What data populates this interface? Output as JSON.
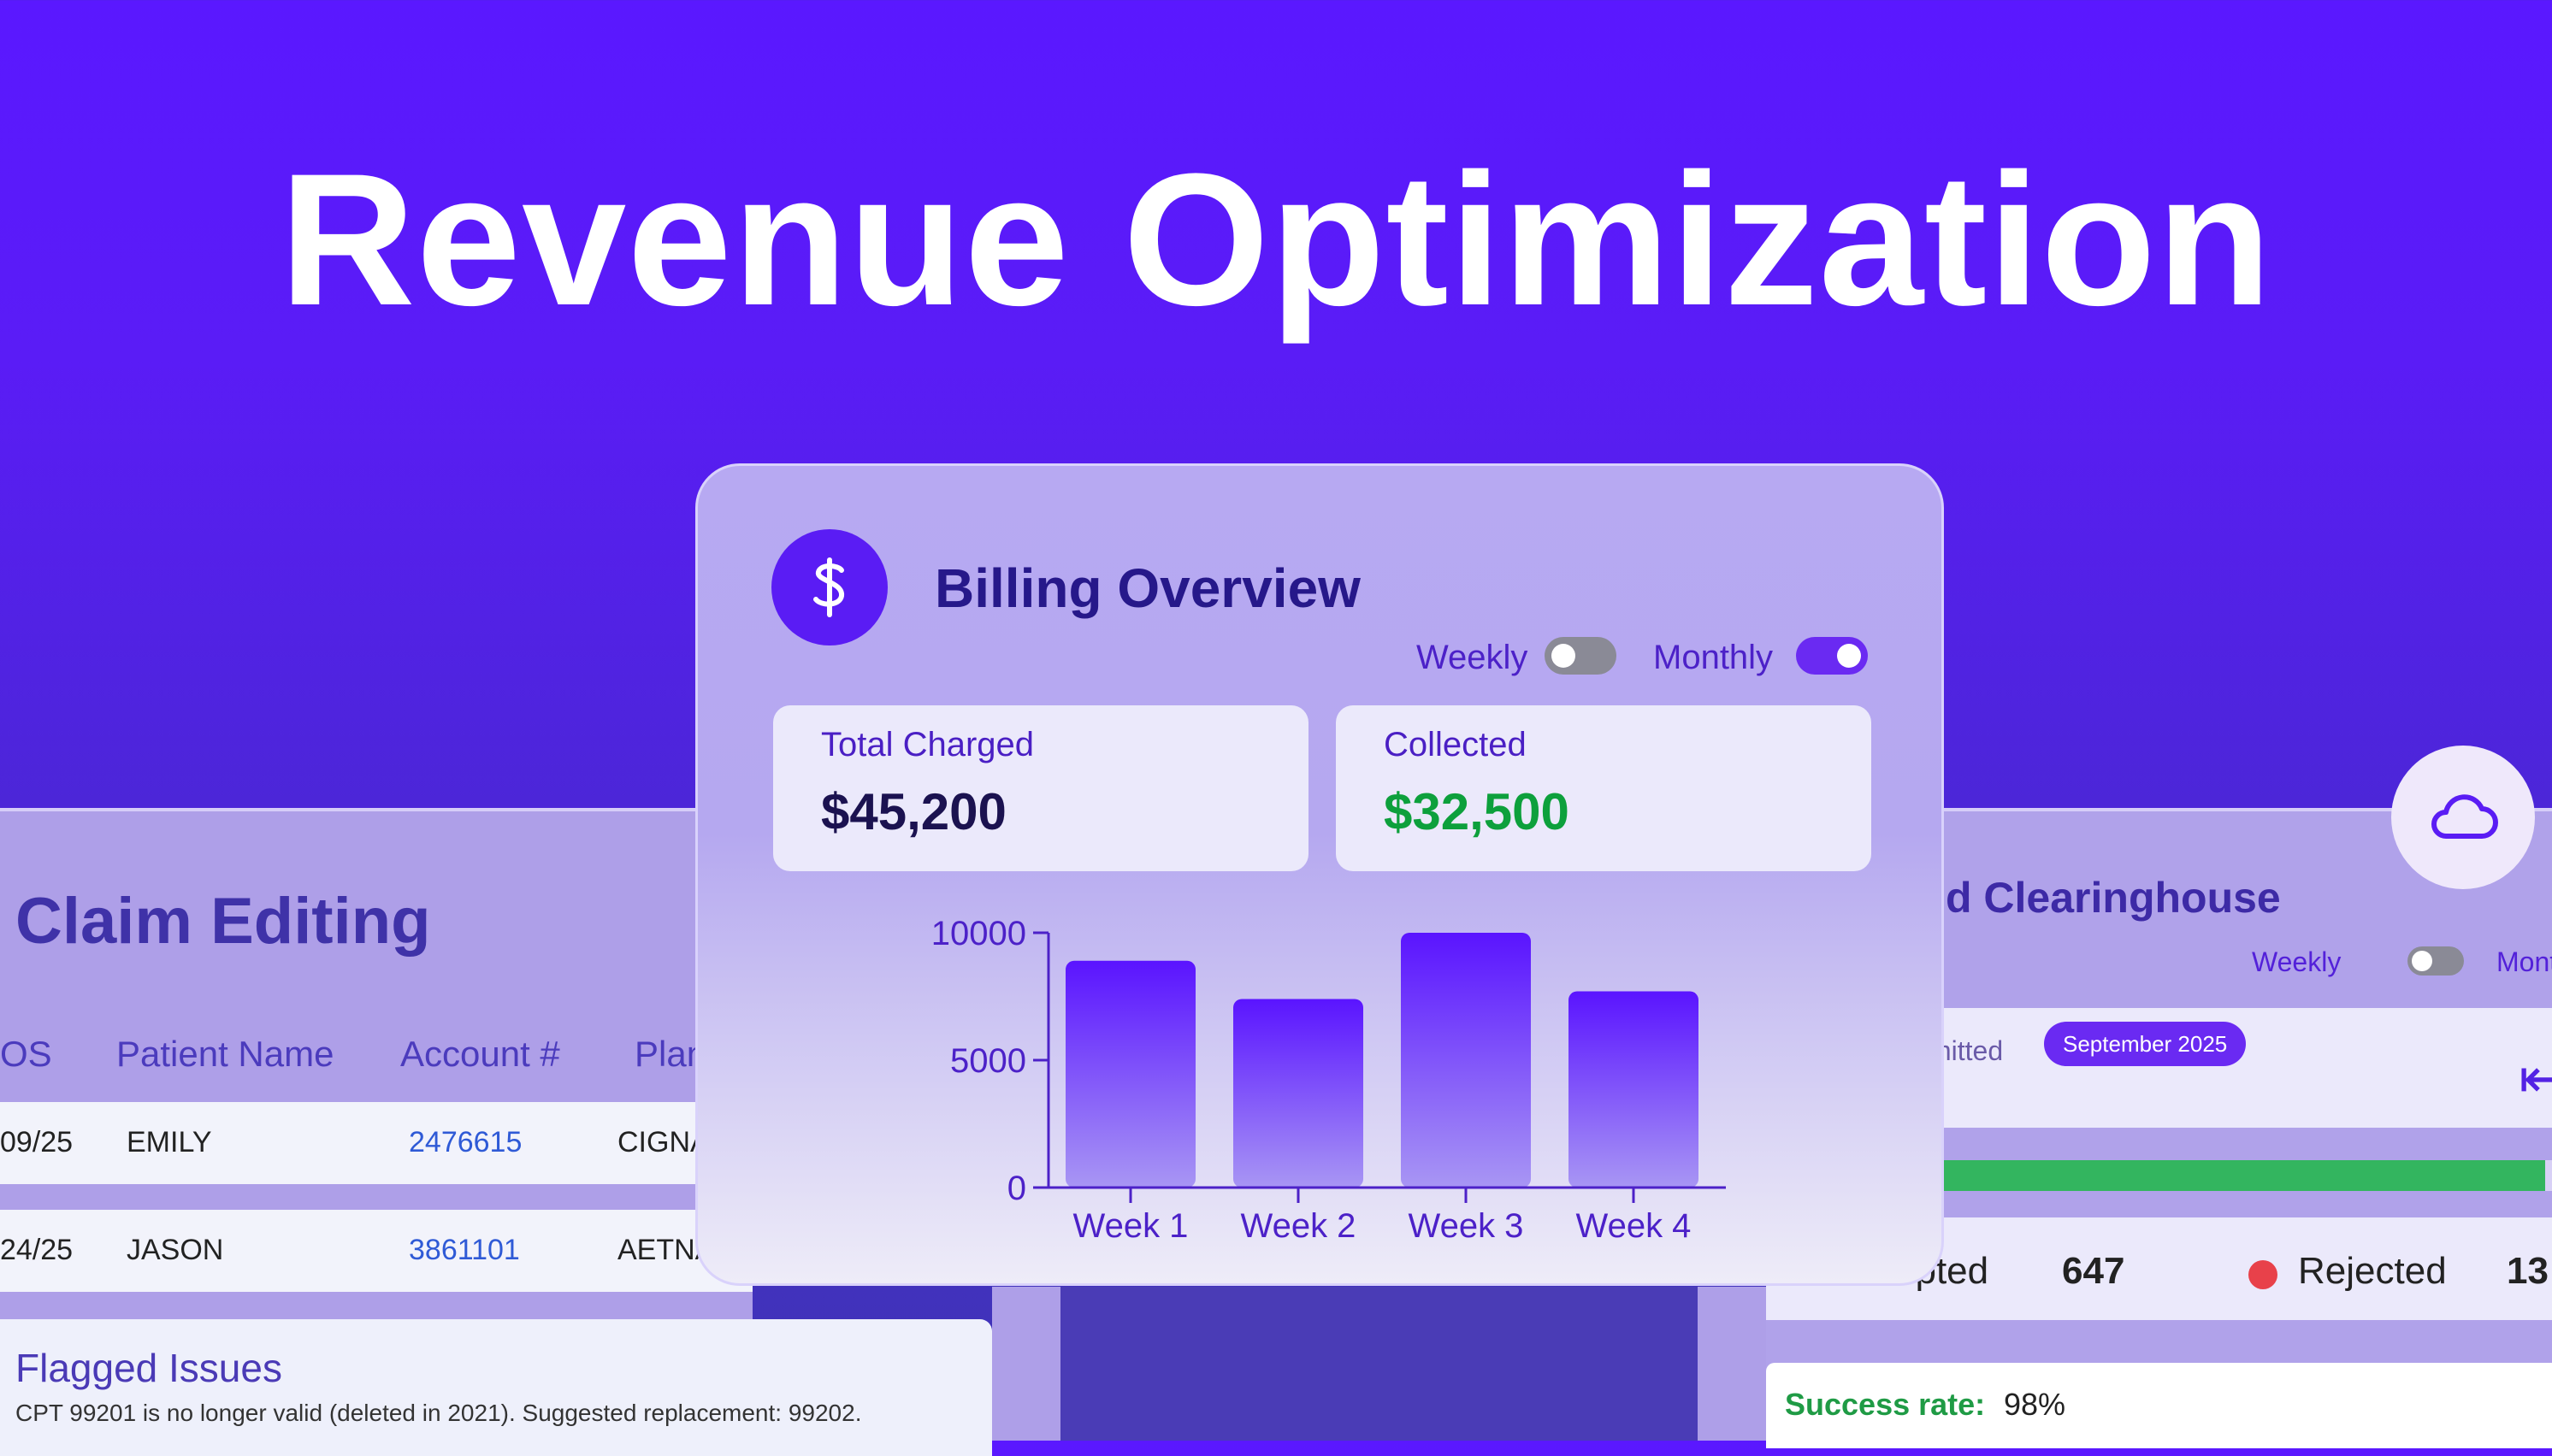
{
  "hero": {
    "title": "Revenue Optimization"
  },
  "claim_editing": {
    "title": "Claim Editing",
    "columns": [
      "OS",
      "Patient Name",
      "Account #",
      "Plan"
    ],
    "rows": [
      {
        "date": "09/25",
        "patient": "EMILY",
        "account": "2476615",
        "plan": "CIGNA"
      },
      {
        "date": "24/25",
        "patient": "JASON",
        "account": "3861101",
        "plan": "AETNA"
      }
    ],
    "flagged": {
      "title": "Flagged Issues",
      "text": "CPT 99201 is no longer valid (deleted in 2021). Suggested replacement: 99202."
    }
  },
  "billing_overview": {
    "title": "Billing Overview",
    "icon": "dollar-icon",
    "toggle_weekly": "Weekly",
    "toggle_monthly": "Monthly",
    "weekly_on": false,
    "monthly_on": true,
    "total_charged_label": "Total Charged",
    "total_charged_value": "$45,200",
    "collected_label": "Collected",
    "collected_value": "$32,500",
    "colors": {
      "accent": "#5a1cf4",
      "collected": "#0da03c",
      "charged": "#1b1250"
    }
  },
  "chart_data": {
    "type": "bar",
    "categories": [
      "Week 1",
      "Week 2",
      "Week 3",
      "Week 4"
    ],
    "values": [
      8900,
      7400,
      10000,
      7700
    ],
    "ylim": [
      0,
      10000
    ],
    "yticks": [
      "0",
      "5000",
      "10000"
    ],
    "title": "",
    "xlabel": "",
    "ylabel": "",
    "grid": false
  },
  "clearinghouse": {
    "title": "d Clearinghouse",
    "toggle_weekly": "Weekly",
    "toggle_monthly": "Monthly",
    "submitted_label": "mitted",
    "month_badge": "September 2025",
    "accepted_label": "epted",
    "accepted_value": "647",
    "rejected_label": "Rejected",
    "rejected_value": "13",
    "success_label": "Success rate:",
    "success_value": "98%",
    "success_fraction": 0.98,
    "cloud_icon": "cloud-icon",
    "back_icon": "arrow-left-icon"
  }
}
